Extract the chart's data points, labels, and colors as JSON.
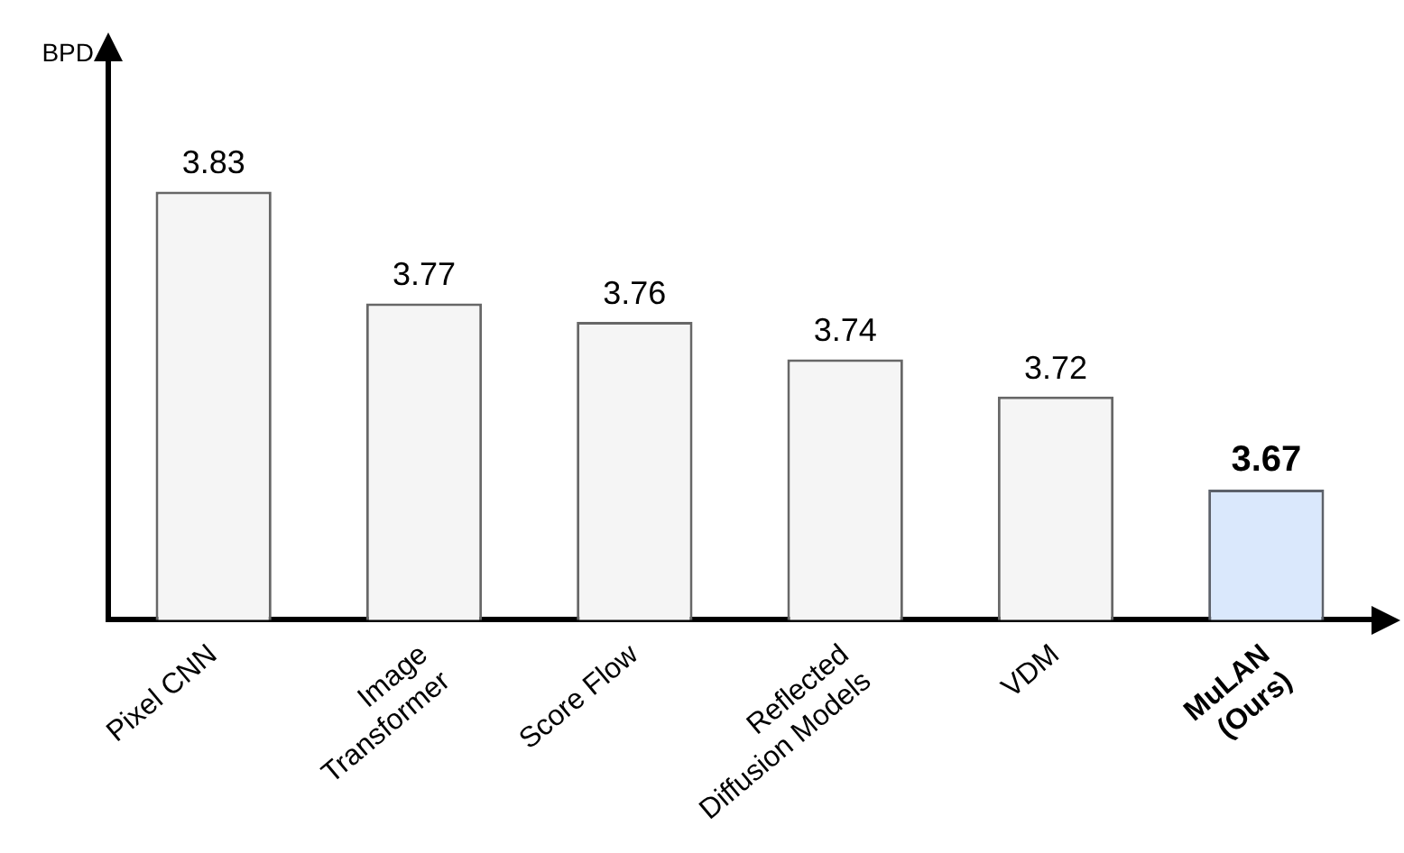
{
  "chart_data": {
    "type": "bar",
    "annotations": [
      "BPD"
    ],
    "categories": [
      "Pixel CNN",
      "Image\nTransformer",
      "Score Flow",
      "Reflected\nDiffusion Models",
      "VDM",
      "MuLAN\n(Ours)"
    ],
    "values": [
      3.83,
      3.77,
      3.76,
      3.74,
      3.72,
      3.67
    ],
    "colors": [
      "#f5f5f5",
      "#f5f5f5",
      "#f5f5f5",
      "#f5f5f5",
      "#f5f5f5",
      "#dae8fc"
    ],
    "tick_labels": "x",
    "grid": false,
    "legend": false,
    "data_labels": true
  }
}
